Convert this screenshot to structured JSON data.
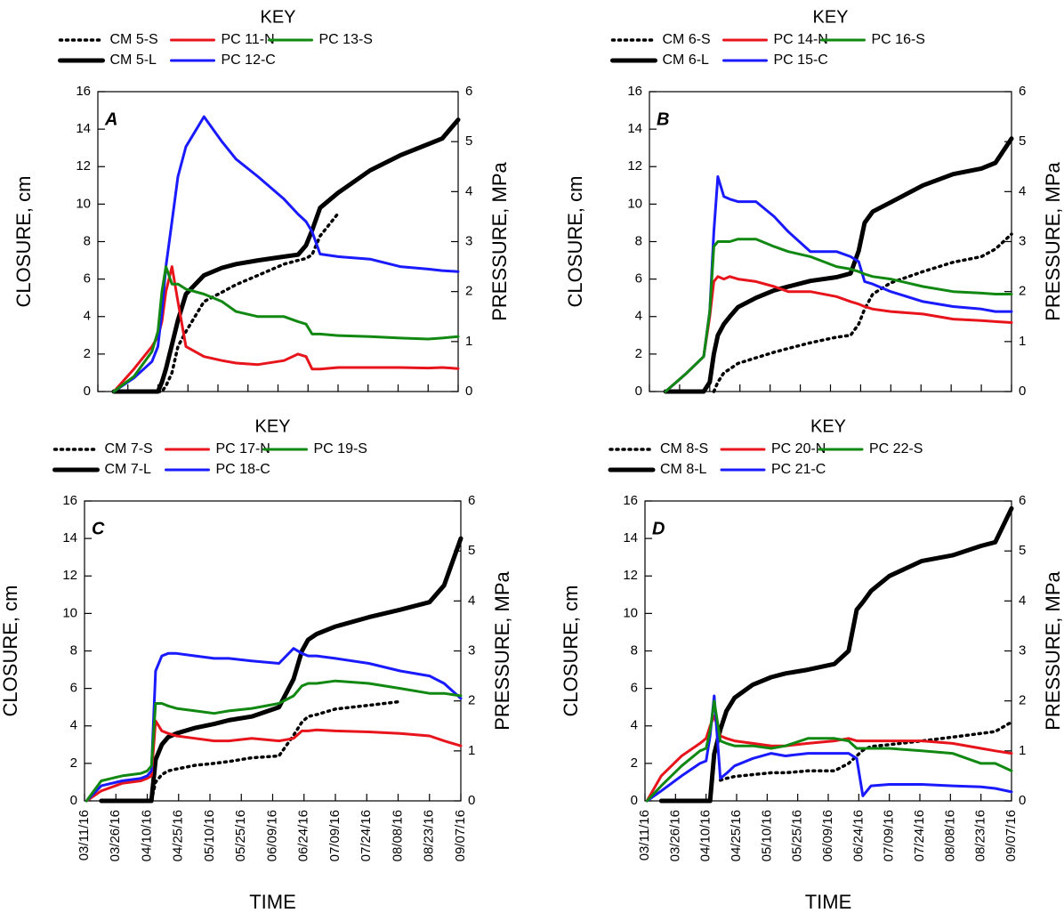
{
  "chart_data": [
    {
      "type": "line",
      "key_title": "KEY",
      "panel_label": "A",
      "ylabel": "CLOSURE, cm",
      "y2label": "PRESSURE, MPa",
      "x": [
        "2016-03-12",
        "2016-03-19",
        "2016-03-29",
        "2016-04-07",
        "2016-04-10",
        "2016-04-12",
        "2016-04-14",
        "2016-04-17",
        "2016-04-20",
        "2016-04-24",
        "2016-05-03",
        "2016-05-12",
        "2016-05-19",
        "2016-05-30",
        "2016-06-12",
        "2016-06-19",
        "2016-06-23",
        "2016-06-26",
        "2016-06-30",
        "2016-07-09",
        "2016-07-25",
        "2016-08-09",
        "2016-08-23",
        "2016-08-30",
        "2016-09-07"
      ],
      "xlim": [
        "2016-03-11",
        "2016-09-07"
      ],
      "xticks": [
        "2016-03-11",
        "2016-03-26",
        "2016-04-10",
        "2016-04-25",
        "2016-05-10",
        "2016-05-25",
        "2016-06-09",
        "2016-06-24",
        "2016-07-09",
        "2016-07-24",
        "2016-08-08",
        "2016-08-23",
        "2016-09-07"
      ],
      "ylim": [
        0,
        16
      ],
      "yticks": [
        0,
        2,
        4,
        6,
        8,
        10,
        12,
        14,
        16
      ],
      "y2lim": [
        0,
        6
      ],
      "y2ticks": [
        0,
        1,
        2,
        3,
        4,
        5,
        6
      ],
      "series": [
        {
          "name": "CM 5-S",
          "color": "#000000",
          "linestyle": "dotted",
          "values": [
            null,
            null,
            null,
            null,
            0,
            0,
            0.3,
            1.0,
            2.4,
            3.2,
            4.8,
            5.3,
            5.7,
            6.2,
            6.8,
            7.0,
            7.1,
            7.3,
            8.3,
            9.5,
            null,
            null,
            null,
            null,
            null
          ]
        },
        {
          "name": "CM 5-L",
          "color": "#000000",
          "linestyle": "solid",
          "values": [
            null,
            0,
            0,
            0,
            0,
            0.5,
            1.2,
            2.5,
            3.8,
            5.2,
            6.2,
            6.6,
            6.8,
            7.0,
            7.2,
            7.3,
            7.8,
            8.6,
            9.8,
            10.6,
            11.8,
            12.6,
            13.2,
            13.5,
            14.5
          ]
        },
        {
          "name": "PC 11-N",
          "color": "#e8141b",
          "axis": "y2",
          "values": [
            null,
            0,
            0.45,
            0.9,
            1.1,
            1.4,
            2.0,
            2.5,
            1.8,
            0.9,
            0.7,
            0.62,
            0.57,
            0.54,
            0.62,
            0.75,
            0.7,
            0.45,
            0.45,
            0.48,
            0.48,
            0.48,
            0.47,
            0.48,
            0.46
          ]
        },
        {
          "name": "PC 12-C",
          "color": "#1a1aff",
          "axis": "y2",
          "values": [
            null,
            0,
            0.27,
            0.6,
            0.9,
            1.6,
            2.5,
            3.4,
            4.3,
            4.9,
            5.5,
            5.0,
            4.65,
            4.3,
            3.85,
            3.55,
            3.4,
            3.2,
            2.75,
            2.7,
            2.65,
            2.5,
            2.45,
            2.42,
            2.4
          ]
        },
        {
          "name": "PC 13-S",
          "color": "#118811",
          "axis": "y2",
          "values": [
            null,
            0,
            0.3,
            0.8,
            1.2,
            2.0,
            2.5,
            2.15,
            2.15,
            2.05,
            1.95,
            1.8,
            1.6,
            1.5,
            1.5,
            1.4,
            1.35,
            1.15,
            1.15,
            1.12,
            1.1,
            1.07,
            1.05,
            1.07,
            1.1
          ]
        }
      ]
    },
    {
      "type": "line",
      "key_title": "KEY",
      "panel_label": "B",
      "ylabel": "CLOSURE, cm",
      "y2label": "PRESSURE, MPa",
      "x": [
        "2016-03-12",
        "2016-03-19",
        "2016-03-29",
        "2016-04-07",
        "2016-04-10",
        "2016-04-12",
        "2016-04-14",
        "2016-04-17",
        "2016-04-20",
        "2016-04-24",
        "2016-05-03",
        "2016-05-12",
        "2016-05-19",
        "2016-05-30",
        "2016-06-12",
        "2016-06-19",
        "2016-06-23",
        "2016-06-26",
        "2016-06-30",
        "2016-07-09",
        "2016-07-25",
        "2016-08-09",
        "2016-08-23",
        "2016-08-30",
        "2016-09-07"
      ],
      "xlim": [
        "2016-03-11",
        "2016-09-07"
      ],
      "xticks": [
        "2016-03-11",
        "2016-03-26",
        "2016-04-10",
        "2016-04-25",
        "2016-05-10",
        "2016-05-25",
        "2016-06-09",
        "2016-06-24",
        "2016-07-09",
        "2016-07-24",
        "2016-08-08",
        "2016-08-23",
        "2016-09-07"
      ],
      "ylim": [
        0,
        16
      ],
      "yticks": [
        0,
        2,
        4,
        6,
        8,
        10,
        12,
        14,
        16
      ],
      "y2lim": [
        0,
        6
      ],
      "y2ticks": [
        0,
        1,
        2,
        3,
        4,
        5,
        6
      ],
      "series": [
        {
          "name": "CM 6-S",
          "color": "#000000",
          "linestyle": "dotted",
          "values": [
            null,
            null,
            null,
            null,
            null,
            0,
            0.5,
            1.0,
            1.2,
            1.5,
            1.8,
            2.1,
            2.3,
            2.6,
            2.9,
            3.0,
            3.6,
            4.4,
            5.2,
            5.8,
            6.4,
            6.9,
            7.2,
            7.6,
            8.4
          ]
        },
        {
          "name": "CM 6-L",
          "color": "#000000",
          "linestyle": "solid",
          "values": [
            null,
            0,
            0,
            0,
            0.5,
            2.0,
            3.0,
            3.6,
            4.0,
            4.5,
            5.0,
            5.4,
            5.6,
            5.9,
            6.1,
            6.3,
            7.5,
            9.0,
            9.6,
            10.1,
            11.0,
            11.6,
            11.9,
            12.2,
            13.5
          ]
        },
        {
          "name": "PC 14-N",
          "color": "#e8141b",
          "axis": "y2",
          "values": [
            null,
            0,
            0.35,
            0.7,
            1.5,
            2.2,
            2.3,
            2.25,
            2.3,
            2.25,
            2.2,
            2.1,
            2.0,
            2.0,
            1.9,
            1.8,
            1.75,
            1.7,
            1.65,
            1.6,
            1.55,
            1.45,
            1.42,
            1.4,
            1.38
          ]
        },
        {
          "name": "PC 15-C",
          "color": "#1a1aff",
          "axis": "y2",
          "values": [
            null,
            0,
            0.35,
            0.7,
            1.6,
            3.2,
            4.3,
            3.9,
            3.85,
            3.8,
            3.8,
            3.5,
            3.2,
            2.8,
            2.8,
            2.7,
            2.6,
            2.2,
            2.15,
            2.0,
            1.8,
            1.7,
            1.65,
            1.6,
            1.6
          ]
        },
        {
          "name": "PC 16-S",
          "color": "#118811",
          "axis": "y2",
          "values": [
            null,
            0,
            0.35,
            0.7,
            1.6,
            2.9,
            3.0,
            3.0,
            3.0,
            3.05,
            3.05,
            2.9,
            2.8,
            2.7,
            2.5,
            2.45,
            2.4,
            2.35,
            2.3,
            2.25,
            2.1,
            2.0,
            1.97,
            1.95,
            1.95
          ]
        }
      ]
    },
    {
      "type": "line",
      "key_title": "KEY",
      "panel_label": "C",
      "ylabel": "CLOSURE, cm",
      "y2label": "PRESSURE, MPa",
      "xlabel": "TIME",
      "x": [
        "2016-03-12",
        "2016-03-19",
        "2016-03-29",
        "2016-04-07",
        "2016-04-10",
        "2016-04-12",
        "2016-04-14",
        "2016-04-17",
        "2016-04-20",
        "2016-04-24",
        "2016-05-03",
        "2016-05-12",
        "2016-05-19",
        "2016-05-30",
        "2016-06-12",
        "2016-06-19",
        "2016-06-23",
        "2016-06-26",
        "2016-06-30",
        "2016-07-09",
        "2016-07-25",
        "2016-08-09",
        "2016-08-23",
        "2016-08-30",
        "2016-09-07"
      ],
      "xlim": [
        "2016-03-11",
        "2016-09-07"
      ],
      "xticks": [
        {
          "value": "2016-03-11",
          "label": "03/11/16"
        },
        {
          "value": "2016-03-26",
          "label": "03/26/16"
        },
        {
          "value": "2016-04-10",
          "label": "04/10/16"
        },
        {
          "value": "2016-04-25",
          "label": "04/25/16"
        },
        {
          "value": "2016-05-10",
          "label": "05/10/16"
        },
        {
          "value": "2016-05-25",
          "label": "05/25/16"
        },
        {
          "value": "2016-06-09",
          "label": "06/09/16"
        },
        {
          "value": "2016-06-24",
          "label": "06/24/16"
        },
        {
          "value": "2016-07-09",
          "label": "07/09/16"
        },
        {
          "value": "2016-07-24",
          "label": "07/24/16"
        },
        {
          "value": "2016-08-08",
          "label": "08/08/16"
        },
        {
          "value": "2016-08-23",
          "label": "08/23/16"
        },
        {
          "value": "2016-09-07",
          "label": "09/07/16"
        }
      ],
      "ylim": [
        0,
        16
      ],
      "yticks": [
        0,
        2,
        4,
        6,
        8,
        10,
        12,
        14,
        16
      ],
      "y2lim": [
        0,
        6
      ],
      "y2ticks": [
        0,
        1,
        2,
        3,
        4,
        5,
        6
      ],
      "series": [
        {
          "name": "CM 7-S",
          "color": "#000000",
          "linestyle": "dotted",
          "values": [
            null,
            null,
            null,
            null,
            null,
            0,
            1.0,
            1.4,
            1.6,
            1.7,
            1.9,
            2.0,
            2.1,
            2.3,
            2.4,
            3.5,
            4.2,
            4.5,
            4.6,
            4.9,
            5.1,
            5.3,
            null,
            null,
            null
          ]
        },
        {
          "name": "CM 7-L",
          "color": "#000000",
          "linestyle": "solid",
          "values": [
            null,
            0,
            0,
            0,
            0,
            0,
            2.2,
            3.0,
            3.4,
            3.6,
            3.9,
            4.1,
            4.3,
            4.5,
            5.0,
            6.5,
            8.0,
            8.6,
            8.9,
            9.3,
            9.8,
            10.2,
            10.6,
            11.5,
            14.0
          ]
        },
        {
          "name": "PC 17-N",
          "color": "#e8141b",
          "axis": "y2",
          "values": [
            0,
            0.2,
            0.35,
            0.4,
            0.45,
            0.5,
            1.6,
            1.4,
            1.35,
            1.3,
            1.25,
            1.2,
            1.2,
            1.25,
            1.2,
            1.25,
            1.4,
            1.4,
            1.42,
            1.4,
            1.38,
            1.35,
            1.3,
            1.2,
            1.1
          ]
        },
        {
          "name": "PC 18-C",
          "color": "#1a1aff",
          "axis": "y2",
          "values": [
            0,
            0.3,
            0.4,
            0.45,
            0.5,
            0.6,
            2.6,
            2.9,
            2.95,
            2.95,
            2.9,
            2.85,
            2.85,
            2.8,
            2.75,
            3.05,
            2.95,
            2.9,
            2.9,
            2.85,
            2.75,
            2.6,
            2.5,
            2.35,
            2.05
          ]
        },
        {
          "name": "PC 19-S",
          "color": "#118811",
          "axis": "y2",
          "values": [
            0,
            0.4,
            0.5,
            0.55,
            0.6,
            0.7,
            1.95,
            1.95,
            1.9,
            1.85,
            1.8,
            1.75,
            1.8,
            1.85,
            1.95,
            2.1,
            2.3,
            2.35,
            2.35,
            2.4,
            2.35,
            2.25,
            2.15,
            2.15,
            2.1
          ]
        }
      ]
    },
    {
      "type": "line",
      "key_title": "KEY",
      "panel_label": "D",
      "ylabel": "CLOSURE, cm",
      "y2label": "PRESSURE, MPa",
      "xlabel": "TIME",
      "x": [
        "2016-03-12",
        "2016-03-19",
        "2016-03-29",
        "2016-04-07",
        "2016-04-10",
        "2016-04-12",
        "2016-04-14",
        "2016-04-17",
        "2016-04-20",
        "2016-04-24",
        "2016-05-03",
        "2016-05-12",
        "2016-05-19",
        "2016-05-30",
        "2016-06-12",
        "2016-06-19",
        "2016-06-23",
        "2016-06-26",
        "2016-06-30",
        "2016-07-09",
        "2016-07-25",
        "2016-08-09",
        "2016-08-23",
        "2016-08-30",
        "2016-09-07"
      ],
      "xlim": [
        "2016-03-11",
        "2016-09-07"
      ],
      "xticks": [
        {
          "value": "2016-03-11",
          "label": "03/11/16"
        },
        {
          "value": "2016-03-26",
          "label": "03/26/16"
        },
        {
          "value": "2016-04-10",
          "label": "04/10/16"
        },
        {
          "value": "2016-04-25",
          "label": "04/25/16"
        },
        {
          "value": "2016-05-10",
          "label": "05/10/16"
        },
        {
          "value": "2016-05-25",
          "label": "05/25/16"
        },
        {
          "value": "2016-06-09",
          "label": "06/09/16"
        },
        {
          "value": "2016-06-24",
          "label": "06/24/16"
        },
        {
          "value": "2016-07-09",
          "label": "07/09/16"
        },
        {
          "value": "2016-07-24",
          "label": "07/24/16"
        },
        {
          "value": "2016-08-08",
          "label": "08/08/16"
        },
        {
          "value": "2016-08-23",
          "label": "08/23/16"
        },
        {
          "value": "2016-09-07",
          "label": "09/07/16"
        }
      ],
      "ylim": [
        0,
        16
      ],
      "yticks": [
        0,
        2,
        4,
        6,
        8,
        10,
        12,
        14,
        16
      ],
      "y2lim": [
        0,
        6
      ],
      "y2ticks": [
        0,
        1,
        2,
        3,
        4,
        5,
        6
      ],
      "series": [
        {
          "name": "CM 8-S",
          "color": "#000000",
          "linestyle": "dotted",
          "values": [
            null,
            null,
            null,
            null,
            null,
            null,
            null,
            1.1,
            1.2,
            1.3,
            1.4,
            1.5,
            1.5,
            1.6,
            1.6,
            2.0,
            2.4,
            2.7,
            2.9,
            3.0,
            3.2,
            3.4,
            3.6,
            3.7,
            4.2
          ]
        },
        {
          "name": "CM 8-L",
          "color": "#000000",
          "linestyle": "solid",
          "values": [
            null,
            0,
            0,
            0,
            0,
            0,
            2.5,
            3.8,
            4.8,
            5.5,
            6.2,
            6.6,
            6.8,
            7.0,
            7.3,
            8.0,
            10.2,
            10.6,
            11.2,
            12.0,
            12.8,
            13.1,
            13.6,
            13.8,
            15.6
          ]
        },
        {
          "name": "PC 20-N",
          "color": "#e8141b",
          "axis": "y2",
          "values": [
            0,
            0.5,
            0.9,
            1.15,
            1.25,
            1.5,
            1.7,
            1.3,
            1.25,
            1.2,
            1.15,
            1.1,
            1.1,
            1.15,
            1.2,
            1.25,
            1.2,
            1.2,
            1.2,
            1.2,
            1.2,
            1.15,
            1.05,
            1.0,
            0.95
          ]
        },
        {
          "name": "PC 21-C",
          "color": "#1a1aff",
          "axis": "y2",
          "values": [
            0,
            0.2,
            0.5,
            0.75,
            0.8,
            1.3,
            2.1,
            0.45,
            0.55,
            0.7,
            0.85,
            0.95,
            0.9,
            0.95,
            0.95,
            0.95,
            0.85,
            0.1,
            0.3,
            0.33,
            0.33,
            0.3,
            0.28,
            0.25,
            0.18
          ]
        },
        {
          "name": "PC 22-S",
          "color": "#118811",
          "axis": "y2",
          "values": [
            0,
            0.3,
            0.7,
            1.0,
            1.05,
            1.4,
            2.0,
            1.2,
            1.15,
            1.1,
            1.1,
            1.05,
            1.1,
            1.25,
            1.25,
            1.2,
            1.05,
            1.05,
            1.05,
            1.05,
            1.0,
            0.95,
            0.75,
            0.75,
            0.6
          ]
        }
      ]
    }
  ]
}
